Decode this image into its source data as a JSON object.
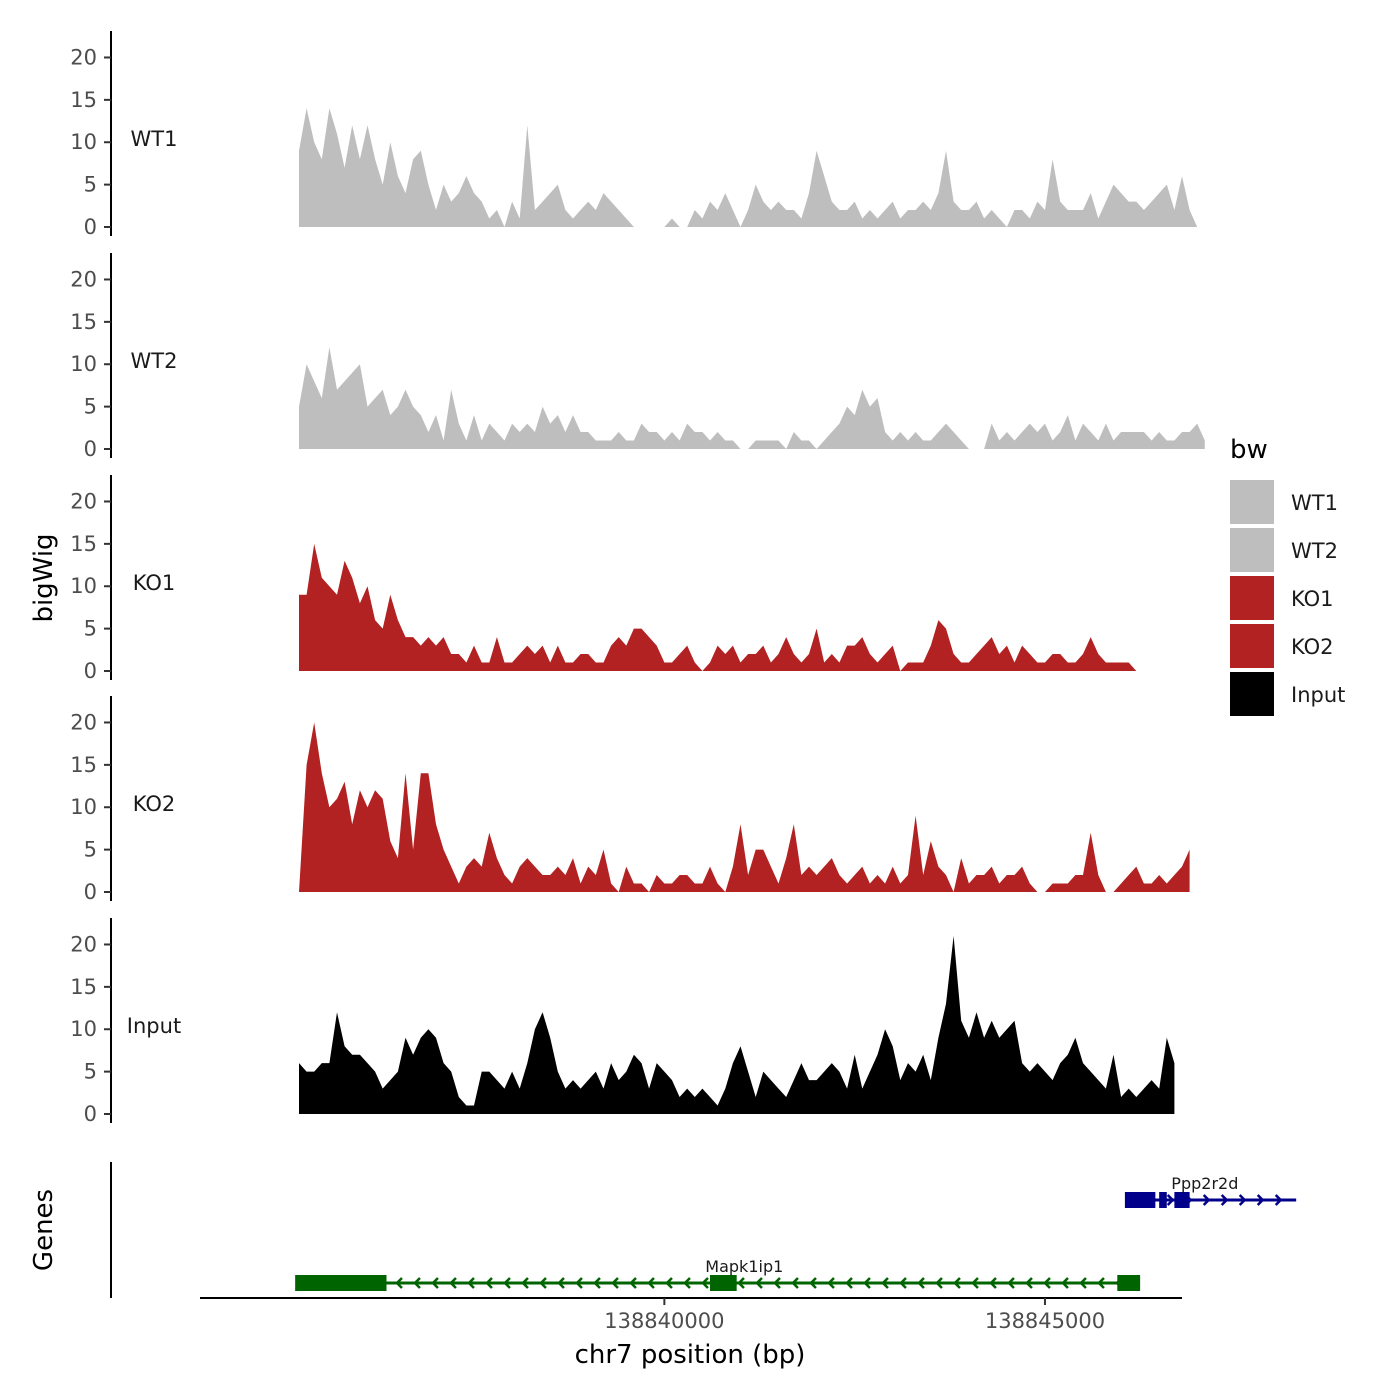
{
  "chart_data": {
    "type": "area",
    "title": "",
    "xlabel": "chr7 position (bp)",
    "ylabel": "bigWig",
    "genes_axis_label": "Genes",
    "xlim": [
      138833900,
      138846800
    ],
    "ylim": [
      0,
      21
    ],
    "x_ticks": [
      138840000,
      138845000
    ],
    "x_tick_labels": [
      "138840000",
      "138845000"
    ],
    "y_ticks": [
      0,
      5,
      10,
      15,
      20
    ],
    "y_tick_labels": [
      "0",
      "5",
      "10",
      "15",
      "20"
    ],
    "x_start": 138835200,
    "x_step": 100,
    "legend": {
      "title": "bw",
      "entries": [
        {
          "label": "WT1",
          "color": "#bebebe"
        },
        {
          "label": "WT2",
          "color": "#bebebe"
        },
        {
          "label": "KO1",
          "color": "#b22222"
        },
        {
          "label": "KO2",
          "color": "#b22222"
        },
        {
          "label": "Input",
          "color": "#000000"
        }
      ]
    },
    "series": [
      {
        "name": "WT1",
        "color": "#bebebe",
        "values": [
          9,
          14,
          10,
          8,
          14,
          11,
          7,
          12,
          8,
          12,
          8,
          5,
          10,
          6,
          4,
          8,
          9,
          5,
          2,
          5,
          3,
          4,
          6,
          4,
          3,
          1,
          2,
          0,
          3,
          1,
          12,
          2,
          3,
          4,
          5,
          2,
          1,
          2,
          3,
          2,
          4,
          3,
          2,
          1,
          0,
          0,
          0,
          0,
          0,
          1,
          0,
          0,
          2,
          1,
          3,
          2,
          4,
          2,
          0,
          2,
          5,
          3,
          2,
          3,
          2,
          2,
          1,
          4,
          9,
          6,
          3,
          2,
          2,
          3,
          1,
          2,
          1,
          2,
          3,
          1,
          2,
          2,
          3,
          2,
          4,
          9,
          3,
          2,
          2,
          3,
          1,
          2,
          1,
          0,
          2,
          2,
          1,
          3,
          2,
          8,
          3,
          2,
          2,
          2,
          4,
          1,
          3,
          5,
          4,
          3,
          3,
          2,
          3,
          4,
          5,
          2,
          6,
          2,
          0
        ]
      },
      {
        "name": "WT2",
        "color": "#bebebe",
        "values": [
          5,
          10,
          8,
          6,
          12,
          7,
          8,
          9,
          10,
          5,
          6,
          7,
          4,
          5,
          7,
          5,
          4,
          2,
          4,
          1,
          7,
          3,
          1,
          4,
          1,
          3,
          2,
          1,
          3,
          2,
          3,
          2,
          5,
          3,
          4,
          2,
          4,
          2,
          2,
          1,
          1,
          1,
          2,
          1,
          1,
          3,
          2,
          2,
          1,
          2,
          1,
          3,
          2,
          2,
          1,
          2,
          1,
          1,
          0,
          0,
          1,
          1,
          1,
          1,
          0,
          2,
          1,
          1,
          0,
          1,
          2,
          3,
          5,
          4,
          7,
          5,
          6,
          2,
          1,
          2,
          1,
          2,
          1,
          1,
          2,
          3,
          2,
          1,
          0,
          0,
          0,
          3,
          1,
          2,
          1,
          2,
          3,
          2,
          3,
          1,
          2,
          4,
          1,
          3,
          2,
          1,
          3,
          1,
          2,
          2,
          2,
          2,
          1,
          2,
          1,
          1,
          2,
          2,
          3,
          1
        ]
      },
      {
        "name": "KO1",
        "color": "#b22222",
        "values": [
          9,
          9,
          15,
          11,
          10,
          9,
          13,
          11,
          8,
          10,
          6,
          5,
          9,
          6,
          4,
          4,
          3,
          4,
          3,
          4,
          2,
          2,
          1,
          3,
          1,
          1,
          4,
          1,
          1,
          2,
          3,
          2,
          3,
          1,
          3,
          1,
          1,
          2,
          2,
          1,
          1,
          3,
          4,
          3,
          5,
          5,
          4,
          3,
          1,
          1,
          2,
          3,
          1,
          0,
          1,
          3,
          2,
          3,
          1,
          2,
          2,
          3,
          1,
          2,
          4,
          2,
          1,
          2,
          5,
          1,
          2,
          1,
          3,
          3,
          4,
          2,
          1,
          2,
          3,
          0,
          1,
          1,
          1,
          3,
          6,
          5,
          2,
          1,
          1,
          2,
          3,
          4,
          2,
          3,
          1,
          3,
          2,
          1,
          1,
          2,
          2,
          1,
          1,
          2,
          4,
          2,
          1,
          1,
          1,
          1,
          0
        ]
      },
      {
        "name": "KO2",
        "color": "#b22222",
        "values": [
          0,
          15,
          20,
          14,
          10,
          11,
          13,
          8,
          12,
          10,
          12,
          11,
          6,
          4,
          14,
          5,
          14,
          14,
          8,
          5,
          3,
          1,
          3,
          4,
          3,
          7,
          4,
          2,
          1,
          3,
          4,
          3,
          2,
          2,
          3,
          2,
          4,
          1,
          3,
          2,
          5,
          1,
          0,
          3,
          1,
          1,
          0,
          2,
          1,
          1,
          2,
          2,
          1,
          1,
          3,
          1,
          0,
          3,
          8,
          2,
          5,
          5,
          3,
          1,
          4,
          8,
          2,
          3,
          2,
          3,
          4,
          2,
          1,
          2,
          3,
          1,
          2,
          1,
          3,
          1,
          2,
          9,
          2,
          6,
          3,
          2,
          0,
          4,
          1,
          2,
          2,
          3,
          1,
          2,
          2,
          3,
          1,
          0,
          0,
          1,
          1,
          1,
          2,
          2,
          7,
          2,
          0,
          0,
          1,
          2,
          3,
          1,
          1,
          2,
          1,
          2,
          3,
          5
        ]
      },
      {
        "name": "Input",
        "color": "#000000",
        "values": [
          6,
          5,
          5,
          6,
          6,
          12,
          8,
          7,
          7,
          6,
          5,
          3,
          4,
          5,
          9,
          7,
          9,
          10,
          9,
          6,
          5,
          2,
          1,
          1,
          5,
          5,
          4,
          3,
          5,
          3,
          6,
          10,
          12,
          9,
          5,
          3,
          4,
          3,
          4,
          5,
          3,
          6,
          4,
          5,
          7,
          6,
          3,
          6,
          5,
          4,
          2,
          3,
          2,
          3,
          2,
          1,
          3,
          6,
          8,
          5,
          2,
          5,
          4,
          3,
          2,
          4,
          6,
          4,
          4,
          5,
          6,
          5,
          3,
          7,
          3,
          5,
          7,
          10,
          8,
          4,
          6,
          5,
          7,
          4,
          9,
          13,
          21,
          11,
          9,
          12,
          9,
          11,
          9,
          10,
          11,
          6,
          5,
          6,
          5,
          4,
          6,
          7,
          9,
          6,
          5,
          4,
          3,
          7,
          2,
          3,
          2,
          3,
          4,
          3,
          9,
          6
        ]
      }
    ],
    "genes": [
      {
        "name": "Ppp2r2d",
        "strand": "+",
        "color": "#00008b",
        "start": 138846100,
        "end": 138848300,
        "exons": [
          [
            138846050,
            138846450
          ],
          [
            138846500,
            138846600
          ],
          [
            138846700,
            138846900
          ]
        ]
      },
      {
        "name": "Mapk1ip1",
        "strand": "-",
        "color": "#006400",
        "start": 138835200,
        "end": 138846100,
        "exons": [
          [
            138835150,
            138836350
          ],
          [
            138840600,
            138840950
          ],
          [
            138845950,
            138846250
          ]
        ]
      }
    ]
  }
}
